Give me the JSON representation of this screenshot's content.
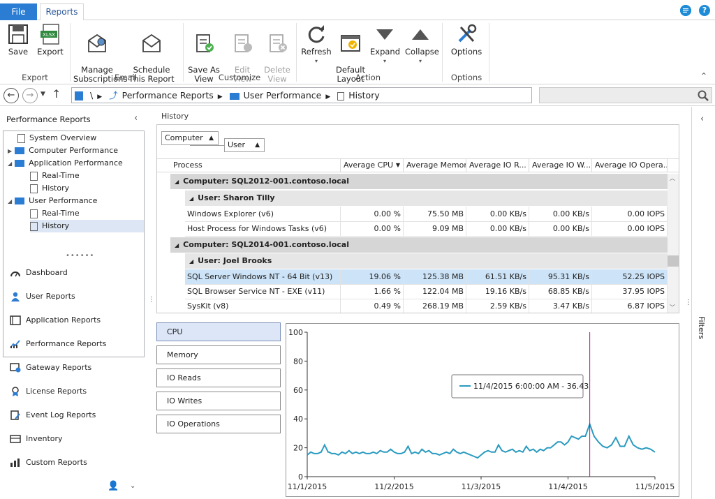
{
  "tabs": {
    "file": "File",
    "reports": "Reports"
  },
  "ribbon": {
    "buttons": [
      {
        "id": "save",
        "label": "Save"
      },
      {
        "id": "export",
        "label": "Export"
      },
      {
        "id": "manage",
        "label": "Manage\nSubscriptions"
      },
      {
        "id": "schedule",
        "label": "Schedule\nThis Report"
      },
      {
        "id": "saveas",
        "label": "Save As\nView"
      },
      {
        "id": "editview",
        "label": "Edit View"
      },
      {
        "id": "deleteview",
        "label": "Delete\nView"
      },
      {
        "id": "refresh",
        "label": "Refresh"
      },
      {
        "id": "deflayout",
        "label": "Default\nLayout"
      },
      {
        "id": "expand",
        "label": "Expand"
      },
      {
        "id": "collapse",
        "label": "Collapse"
      },
      {
        "id": "options",
        "label": "Options"
      }
    ],
    "groups": {
      "export": "Export",
      "email": "Email",
      "customize": "Customize",
      "action": "Action",
      "options": "Options"
    }
  },
  "address": {
    "sep": "\\",
    "crumbs": [
      "Performance Reports",
      "User Performance",
      "History"
    ]
  },
  "left": {
    "title": "Performance Reports",
    "tree": [
      "System Overview",
      "Computer Performance",
      "Application Performance",
      "Real-Time",
      "History",
      "User Performance",
      "Real-Time",
      "History"
    ],
    "nav": [
      "Dashboard",
      "User Reports",
      "Application Reports",
      "Performance Reports",
      "Gateway Reports",
      "License Reports",
      "Event Log Reports",
      "Inventory",
      "Custom Reports"
    ]
  },
  "main": {
    "title": "History",
    "group_tabs": [
      "Computer",
      "User"
    ],
    "columns": [
      "Process",
      "Average CPU",
      "Average Memory",
      "Average IO R...",
      "Average IO W...",
      "Average IO Opera..."
    ],
    "groups": [
      {
        "computer": "Computer: SQL2012-001.contoso.local",
        "user": "User: Sharon Tilly",
        "rows": [
          [
            "Windows Explorer (v6)",
            "0.00 %",
            "75.50 MB",
            "0.00 KB/s",
            "0.00 KB/s",
            "0.00 IOPS"
          ],
          [
            "Host Process for Windows Tasks (v6)",
            "0.00 %",
            "9.09 MB",
            "0.00 KB/s",
            "0.00 KB/s",
            "0.00 IOPS"
          ]
        ]
      },
      {
        "computer": "Computer: SQL2014-001.contoso.local",
        "user": "User: Joel Brooks",
        "rows": [
          [
            "SQL Server Windows NT - 64 Bit (v13)",
            "19.06 %",
            "125.38 MB",
            "61.51 KB/s",
            "95.31 KB/s",
            "52.25 IOPS"
          ],
          [
            "SQL Browser Service NT - EXE (v11)",
            "1.66 %",
            "122.04 MB",
            "19.16 KB/s",
            "68.85 KB/s",
            "37.95 IOPS"
          ],
          [
            "SysKit (v8)",
            "0.49 %",
            "268.19 MB",
            "2.59 KB/s",
            "3.47 KB/s",
            "6.87 IOPS"
          ]
        ]
      }
    ],
    "metric_buttons": [
      "CPU",
      "Memory",
      "IO Reads",
      "IO Writes",
      "IO Operations"
    ],
    "filters": "Filters"
  },
  "chart_data": {
    "type": "line",
    "yticks": [
      "100",
      "80",
      "60",
      "40",
      "20",
      "0"
    ],
    "xticks": [
      "11/1/2015",
      "11/2/2015",
      "11/3/2015",
      "11/4/2015",
      "11/5/2015"
    ],
    "ylim": [
      0,
      100
    ],
    "xlim": [
      0,
      4
    ],
    "tooltip": "11/4/2015 6:00:00 AM - 36.43",
    "marker_x": 3.25,
    "color": "#2a9bc0",
    "x": [
      0,
      0.04,
      0.08,
      0.12,
      0.16,
      0.2,
      0.24,
      0.25,
      0.28,
      0.32,
      0.36,
      0.4,
      0.44,
      0.48,
      0.52,
      0.56,
      0.6,
      0.64,
      0.68,
      0.72,
      0.76,
      0.8,
      0.84,
      0.88,
      0.92,
      0.96,
      1.0,
      1.04,
      1.08,
      1.12,
      1.16,
      1.2,
      1.24,
      1.28,
      1.32,
      1.36,
      1.4,
      1.44,
      1.48,
      1.52,
      1.56,
      1.6,
      1.64,
      1.68,
      1.72,
      1.76,
      1.8,
      1.84,
      1.88,
      1.92,
      1.96,
      2.0,
      2.04,
      2.08,
      2.12,
      2.16,
      2.2,
      2.24,
      2.28,
      2.32,
      2.36,
      2.4,
      2.44,
      2.48,
      2.52,
      2.56,
      2.6,
      2.64,
      2.68,
      2.72,
      2.76,
      2.8,
      2.84,
      2.88,
      2.92,
      2.96,
      3.0,
      3.04,
      3.08,
      3.12,
      3.16,
      3.2,
      3.25,
      3.3,
      3.35,
      3.4,
      3.45,
      3.5,
      3.55,
      3.6,
      3.65,
      3.7,
      3.75,
      3.8,
      3.85,
      3.9,
      3.95,
      4.0
    ],
    "values": [
      15,
      17,
      16,
      16,
      17,
      22,
      17,
      17,
      16,
      16,
      15,
      17,
      16,
      18,
      16,
      17,
      16,
      17,
      16,
      16,
      17,
      16,
      18,
      17,
      17,
      19,
      17,
      16,
      16,
      17,
      21,
      16,
      17,
      16,
      19,
      17,
      18,
      16,
      16,
      15,
      16,
      17,
      16,
      19,
      17,
      16,
      17,
      16,
      15,
      14,
      13,
      15,
      17,
      18,
      17,
      17,
      22,
      18,
      17,
      18,
      19,
      17,
      18,
      17,
      21,
      18,
      19,
      17,
      19,
      18,
      20,
      20,
      22,
      24,
      24,
      22,
      24,
      28,
      27,
      26,
      28,
      28,
      36.43,
      28,
      24,
      21,
      20,
      22,
      27,
      21,
      21,
      28,
      22,
      20,
      19,
      20,
      19,
      17
    ]
  }
}
